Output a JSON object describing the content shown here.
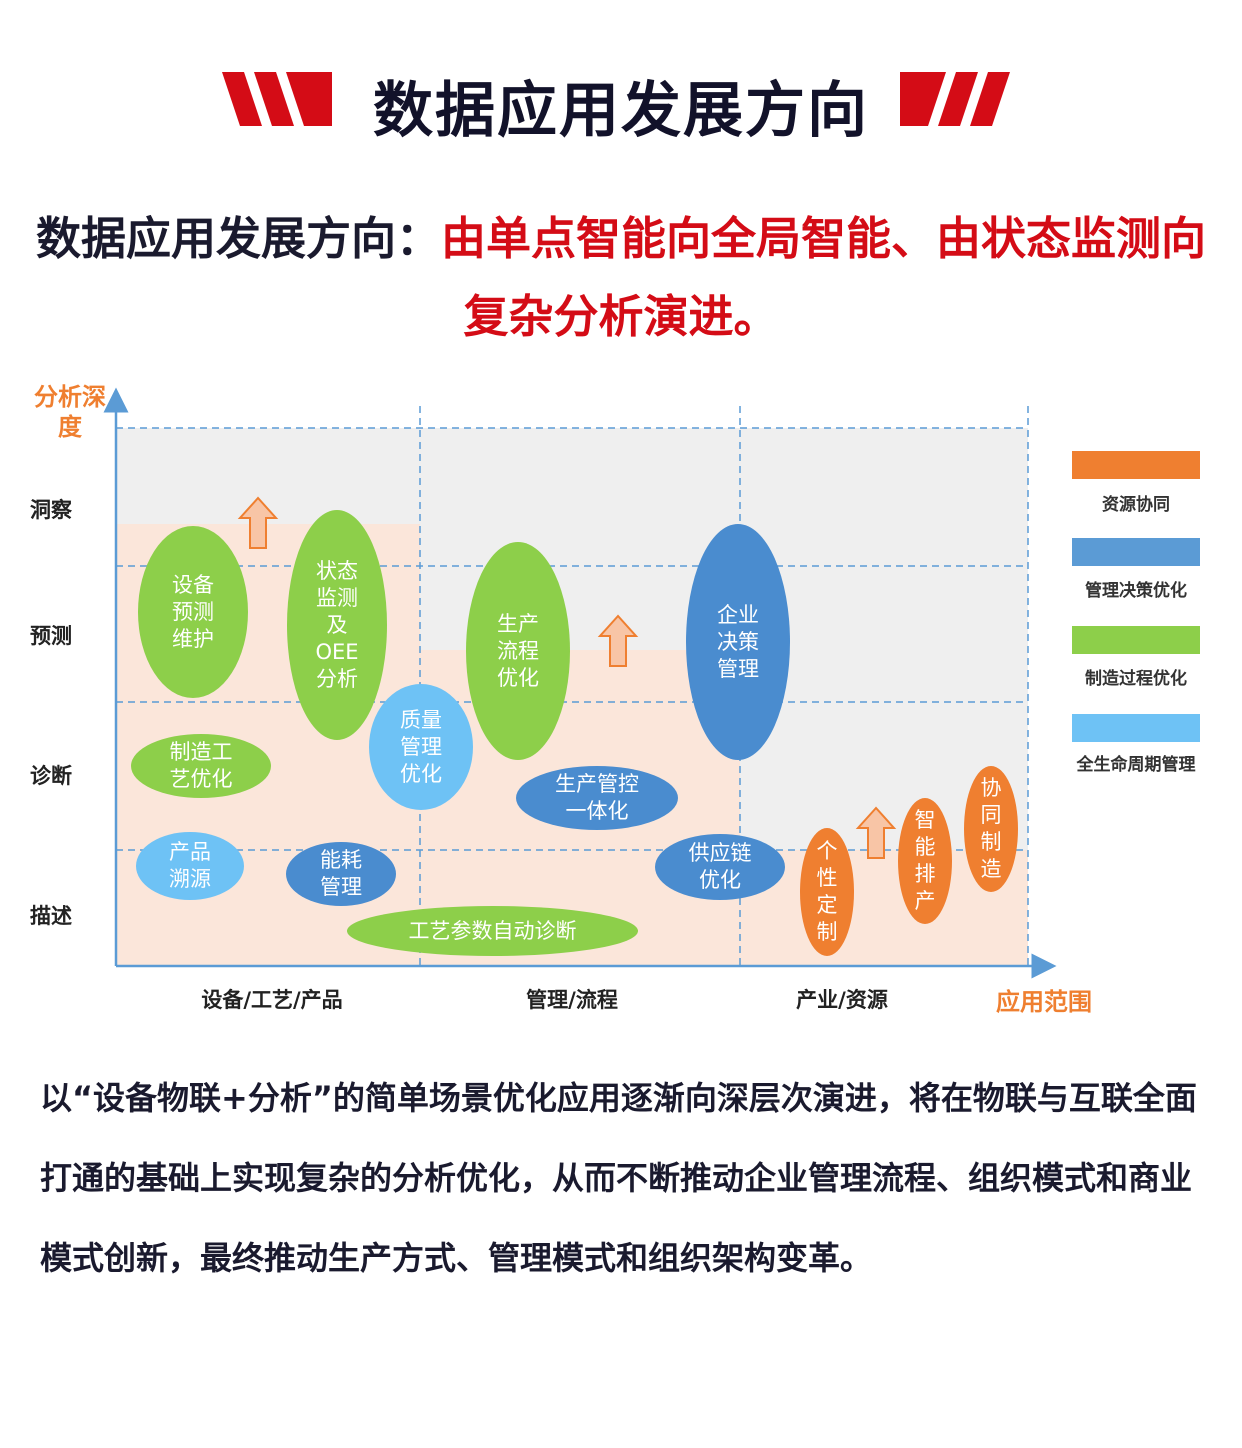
{
  "title": "数据应用发展方向",
  "subtitle": {
    "lead": "数据应用发展方向：",
    "highlight": "由单点智能向全局智能、由状态监测向复杂分析演进。"
  },
  "colors": {
    "title_accent": "#d40c16",
    "highlight": "#d40c16",
    "axis_label": "#ef7f30",
    "resource": "#ef7f30",
    "management": "#5b9bd5",
    "manufacturing": "#8dcf4a",
    "lifecycle": "#6ec2f5"
  },
  "chart": {
    "y_axis_title": "分析深度",
    "y_levels": [
      "洞察",
      "预测",
      "诊断",
      "描述"
    ],
    "x_axis_title": "应用范围",
    "x_categories": [
      "设备/工艺/产品",
      "管理/流程",
      "产业/资源"
    ],
    "legend": [
      {
        "label": "资源协同",
        "color_key": "resource"
      },
      {
        "label": "管理决策优化",
        "color_key": "management"
      },
      {
        "label": "制造过程优化",
        "color_key": "manufacturing"
      },
      {
        "label": "全生命周期管理",
        "color_key": "lifecycle"
      }
    ],
    "bubbles": [
      {
        "id": "equipment-predictive-maintenance",
        "lines": [
          "设备",
          "预测",
          "维护"
        ],
        "category": "manufacturing"
      },
      {
        "id": "status-monitoring-oee",
        "lines": [
          "状态",
          "监测",
          "及",
          "OEE",
          "分析"
        ],
        "category": "manufacturing"
      },
      {
        "id": "manufacturing-process-optimization",
        "lines": [
          "制造工",
          "艺优化"
        ],
        "category": "manufacturing"
      },
      {
        "id": "quality-management-optimization",
        "lines": [
          "质量",
          "管理",
          "优化"
        ],
        "category": "lifecycle"
      },
      {
        "id": "product-traceability",
        "lines": [
          "产品",
          "溯源"
        ],
        "category": "lifecycle"
      },
      {
        "id": "energy-management",
        "lines": [
          "能耗",
          "管理"
        ],
        "category": "management"
      },
      {
        "id": "process-parameter-auto-diagnosis",
        "lines": [
          "工艺参数自动诊断"
        ],
        "category": "manufacturing"
      },
      {
        "id": "production-flow-optimization",
        "lines": [
          "生产",
          "流程",
          "优化"
        ],
        "category": "manufacturing"
      },
      {
        "id": "production-control-integration",
        "lines": [
          "生产管控",
          "一体化"
        ],
        "category": "management"
      },
      {
        "id": "enterprise-decision-management",
        "lines": [
          "企业",
          "决策",
          "管理"
        ],
        "category": "management"
      },
      {
        "id": "supply-chain-optimization",
        "lines": [
          "供应链",
          "优化"
        ],
        "category": "management"
      },
      {
        "id": "personalized-customization",
        "lines": [
          "个",
          "性",
          "定",
          "制"
        ],
        "category": "resource"
      },
      {
        "id": "intelligent-scheduling",
        "lines": [
          "智",
          "能",
          "排",
          "产"
        ],
        "category": "resource"
      },
      {
        "id": "collaborative-manufacturing",
        "lines": [
          "协",
          "同",
          "制",
          "造"
        ],
        "category": "resource"
      }
    ]
  },
  "body_text": "以“设备物联+分析”的简单场景优化应用逐渐向深层次演进，将在物联与互联全面打通的基础上实现复杂的分析优化，从而不断推动企业管理流程、组织模式和商业模式创新，最终推动生产方式、管理模式和组织架构变革。"
}
